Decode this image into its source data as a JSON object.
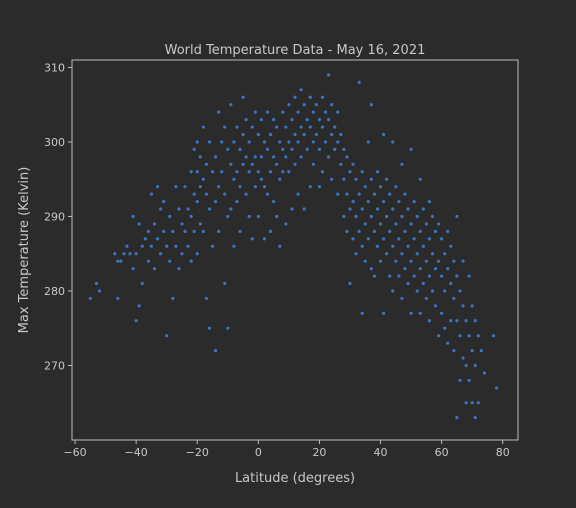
{
  "chart_data": {
    "type": "scatter",
    "title": "World Temperature Data - May 16, 2021",
    "xlabel": "Latitude (degrees)",
    "ylabel": "Max Temperature (Kelvin)",
    "xlim": [
      -61,
      85
    ],
    "ylim": [
      260,
      311
    ],
    "xticks": [
      -60,
      -40,
      -20,
      0,
      20,
      40,
      60,
      80
    ],
    "yticks": [
      270,
      280,
      290,
      300,
      310
    ],
    "grid": false,
    "point_color": "#3a75c4",
    "background": "#2b2b2b",
    "series": [
      {
        "points": [
          [
            -55,
            279
          ],
          [
            -53,
            281
          ],
          [
            -52,
            280
          ],
          [
            -47,
            285
          ],
          [
            -46,
            284
          ],
          [
            -46,
            279
          ],
          [
            -45,
            284
          ],
          [
            -44,
            285
          ],
          [
            -43,
            286
          ],
          [
            -42,
            285
          ],
          [
            -41,
            283
          ],
          [
            -41,
            290
          ],
          [
            -40,
            276
          ],
          [
            -40,
            285
          ],
          [
            -39,
            278
          ],
          [
            -39,
            289
          ],
          [
            -38,
            281
          ],
          [
            -38,
            286
          ],
          [
            -37,
            287
          ],
          [
            -36,
            284
          ],
          [
            -36,
            288
          ],
          [
            -35,
            293
          ],
          [
            -35,
            286
          ],
          [
            -34,
            289
          ],
          [
            -34,
            283
          ],
          [
            -33,
            294
          ],
          [
            -33,
            287
          ],
          [
            -32,
            291
          ],
          [
            -32,
            285
          ],
          [
            -31,
            288
          ],
          [
            -31,
            292
          ],
          [
            -30,
            274
          ],
          [
            -30,
            286
          ],
          [
            -29,
            290
          ],
          [
            -29,
            284
          ],
          [
            -28,
            279
          ],
          [
            -28,
            288
          ],
          [
            -27,
            294
          ],
          [
            -27,
            286
          ],
          [
            -26,
            291
          ],
          [
            -26,
            283
          ],
          [
            -25,
            289
          ],
          [
            -25,
            285
          ],
          [
            -24,
            294
          ],
          [
            -24,
            288
          ],
          [
            -23,
            291
          ],
          [
            -23,
            286
          ],
          [
            -22,
            296
          ],
          [
            -22,
            290
          ],
          [
            -22,
            284
          ],
          [
            -21,
            299
          ],
          [
            -21,
            293
          ],
          [
            -21,
            288
          ],
          [
            -20,
            300
          ],
          [
            -20,
            296
          ],
          [
            -20,
            292
          ],
          [
            -20,
            285
          ],
          [
            -19,
            298
          ],
          [
            -19,
            294
          ],
          [
            -19,
            289
          ],
          [
            -18,
            302
          ],
          [
            -18,
            295
          ],
          [
            -18,
            288
          ],
          [
            -17,
            297
          ],
          [
            -17,
            293
          ],
          [
            -17,
            279
          ],
          [
            -16,
            300
          ],
          [
            -16,
            291
          ],
          [
            -16,
            275
          ],
          [
            -15,
            296
          ],
          [
            -15,
            286
          ],
          [
            -14,
            298
          ],
          [
            -14,
            292
          ],
          [
            -14,
            272
          ],
          [
            -13,
            304
          ],
          [
            -13,
            294
          ],
          [
            -13,
            288
          ],
          [
            -12,
            300
          ],
          [
            -12,
            296
          ],
          [
            -11,
            302
          ],
          [
            -11,
            293
          ],
          [
            -11,
            281
          ],
          [
            -10,
            299
          ],
          [
            -10,
            290
          ],
          [
            -10,
            275
          ],
          [
            -9,
            305
          ],
          [
            -9,
            297
          ],
          [
            -9,
            291
          ],
          [
            -8,
            300
          ],
          [
            -8,
            295
          ],
          [
            -8,
            286
          ],
          [
            -7,
            302
          ],
          [
            -7,
            296
          ],
          [
            -7,
            292
          ],
          [
            -6,
            299
          ],
          [
            -6,
            294
          ],
          [
            -6,
            288
          ],
          [
            -5,
            306
          ],
          [
            -5,
            301
          ],
          [
            -5,
            297
          ],
          [
            -4,
            303
          ],
          [
            -4,
            298
          ],
          [
            -4,
            293
          ],
          [
            -3,
            300
          ],
          [
            -3,
            296
          ],
          [
            -3,
            290
          ],
          [
            -2,
            302
          ],
          [
            -2,
            297
          ],
          [
            -2,
            287
          ],
          [
            -1,
            304
          ],
          [
            -1,
            298
          ],
          [
            -1,
            294
          ],
          [
            0,
            301
          ],
          [
            0,
            296
          ],
          [
            0,
            290
          ],
          [
            1,
            303
          ],
          [
            1,
            298
          ],
          [
            1,
            295
          ],
          [
            2,
            300
          ],
          [
            2,
            294
          ],
          [
            2,
            287
          ],
          [
            3,
            304
          ],
          [
            3,
            299
          ],
          [
            3,
            293
          ],
          [
            4,
            301
          ],
          [
            4,
            296
          ],
          [
            4,
            288
          ],
          [
            5,
            303
          ],
          [
            5,
            298
          ],
          [
            5,
            292
          ],
          [
            6,
            302
          ],
          [
            6,
            297
          ],
          [
            6,
            290
          ],
          [
            7,
            300
          ],
          [
            7,
            295
          ],
          [
            7,
            286
          ],
          [
            8,
            304
          ],
          [
            8,
            299
          ],
          [
            8,
            296
          ],
          [
            9,
            302
          ],
          [
            9,
            298
          ],
          [
            9,
            289
          ],
          [
            10,
            305
          ],
          [
            10,
            300
          ],
          [
            10,
            296
          ],
          [
            11,
            303
          ],
          [
            11,
            299
          ],
          [
            11,
            291
          ],
          [
            12,
            306
          ],
          [
            12,
            301
          ],
          [
            12,
            297
          ],
          [
            13,
            304
          ],
          [
            13,
            300
          ],
          [
            13,
            293
          ],
          [
            14,
            307
          ],
          [
            14,
            302
          ],
          [
            14,
            298
          ],
          [
            15,
            305
          ],
          [
            15,
            301
          ],
          [
            15,
            291
          ],
          [
            16,
            303
          ],
          [
            16,
            299
          ],
          [
            17,
            306
          ],
          [
            17,
            302
          ],
          [
            17,
            294
          ],
          [
            18,
            304
          ],
          [
            18,
            300
          ],
          [
            18,
            297
          ],
          [
            19,
            305
          ],
          [
            19,
            301
          ],
          [
            20,
            303
          ],
          [
            20,
            299
          ],
          [
            20,
            294
          ],
          [
            21,
            306
          ],
          [
            21,
            302
          ],
          [
            21,
            296
          ],
          [
            22,
            304
          ],
          [
            22,
            300
          ],
          [
            23,
            309
          ],
          [
            23,
            303
          ],
          [
            23,
            298
          ],
          [
            24,
            305
          ],
          [
            24,
            301
          ],
          [
            24,
            295
          ],
          [
            25,
            302
          ],
          [
            25,
            299
          ],
          [
            26,
            304
          ],
          [
            26,
            300
          ],
          [
            26,
            293
          ],
          [
            27,
            301
          ],
          [
            27,
            297
          ],
          [
            28,
            299
          ],
          [
            28,
            295
          ],
          [
            28,
            290
          ],
          [
            29,
            298
          ],
          [
            29,
            293
          ],
          [
            29,
            288
          ],
          [
            30,
            296
          ],
          [
            30,
            291
          ],
          [
            30,
            281
          ],
          [
            31,
            297
          ],
          [
            31,
            292
          ],
          [
            31,
            287
          ],
          [
            32,
            295
          ],
          [
            32,
            290
          ],
          [
            32,
            285
          ],
          [
            33,
            308
          ],
          [
            33,
            293
          ],
          [
            33,
            288
          ],
          [
            34,
            296
          ],
          [
            34,
            291
          ],
          [
            34,
            286
          ],
          [
            34,
            277
          ],
          [
            35,
            294
          ],
          [
            35,
            289
          ],
          [
            35,
            284
          ],
          [
            36,
            300
          ],
          [
            36,
            292
          ],
          [
            36,
            287
          ],
          [
            37,
            305
          ],
          [
            37,
            295
          ],
          [
            37,
            290
          ],
          [
            37,
            283
          ],
          [
            38,
            293
          ],
          [
            38,
            288
          ],
          [
            38,
            282
          ],
          [
            39,
            296
          ],
          [
            39,
            291
          ],
          [
            39,
            286
          ],
          [
            40,
            294
          ],
          [
            40,
            289
          ],
          [
            40,
            284
          ],
          [
            41,
            301
          ],
          [
            41,
            292
          ],
          [
            41,
            287
          ],
          [
            41,
            277
          ],
          [
            42,
            295
          ],
          [
            42,
            290
          ],
          [
            42,
            285
          ],
          [
            43,
            293
          ],
          [
            43,
            288
          ],
          [
            43,
            282
          ],
          [
            44,
            300
          ],
          [
            44,
            291
          ],
          [
            44,
            286
          ],
          [
            44,
            280
          ],
          [
            45,
            294
          ],
          [
            45,
            289
          ],
          [
            45,
            284
          ],
          [
            46,
            292
          ],
          [
            46,
            287
          ],
          [
            46,
            282
          ],
          [
            47,
            297
          ],
          [
            47,
            290
          ],
          [
            47,
            285
          ],
          [
            47,
            279
          ],
          [
            48,
            293
          ],
          [
            48,
            288
          ],
          [
            48,
            283
          ],
          [
            49,
            291
          ],
          [
            49,
            286
          ],
          [
            49,
            281
          ],
          [
            50,
            299
          ],
          [
            50,
            289
          ],
          [
            50,
            284
          ],
          [
            50,
            277
          ],
          [
            51,
            292
          ],
          [
            51,
            287
          ],
          [
            51,
            282
          ],
          [
            52,
            290
          ],
          [
            52,
            285
          ],
          [
            52,
            280
          ],
          [
            53,
            295
          ],
          [
            53,
            288
          ],
          [
            53,
            283
          ],
          [
            53,
            277
          ],
          [
            54,
            291
          ],
          [
            54,
            286
          ],
          [
            54,
            281
          ],
          [
            55,
            289
          ],
          [
            55,
            284
          ],
          [
            55,
            279
          ],
          [
            56,
            292
          ],
          [
            56,
            287
          ],
          [
            56,
            282
          ],
          [
            56,
            276
          ],
          [
            57,
            290
          ],
          [
            57,
            285
          ],
          [
            57,
            280
          ],
          [
            58,
            288
          ],
          [
            58,
            283
          ],
          [
            58,
            278
          ],
          [
            59,
            289
          ],
          [
            59,
            284
          ],
          [
            59,
            274
          ],
          [
            60,
            287
          ],
          [
            60,
            282
          ],
          [
            60,
            277
          ],
          [
            61,
            285
          ],
          [
            61,
            280
          ],
          [
            61,
            275
          ],
          [
            62,
            288
          ],
          [
            62,
            283
          ],
          [
            62,
            273
          ],
          [
            63,
            286
          ],
          [
            63,
            281
          ],
          [
            63,
            276
          ],
          [
            64,
            284
          ],
          [
            64,
            279
          ],
          [
            64,
            272
          ],
          [
            65,
            290
          ],
          [
            65,
            282
          ],
          [
            65,
            276
          ],
          [
            65,
            263
          ],
          [
            66,
            280
          ],
          [
            66,
            274
          ],
          [
            66,
            268
          ],
          [
            67,
            284
          ],
          [
            67,
            278
          ],
          [
            67,
            271
          ],
          [
            68,
            276
          ],
          [
            68,
            270
          ],
          [
            68,
            265
          ],
          [
            69,
            282
          ],
          [
            69,
            274
          ],
          [
            69,
            268
          ],
          [
            70,
            278
          ],
          [
            70,
            272
          ],
          [
            70,
            265
          ],
          [
            71,
            276
          ],
          [
            71,
            270
          ],
          [
            71,
            263
          ],
          [
            72,
            274
          ],
          [
            72,
            265
          ],
          [
            73,
            272
          ],
          [
            74,
            269
          ],
          [
            77,
            274
          ],
          [
            78,
            267
          ]
        ]
      }
    ]
  }
}
